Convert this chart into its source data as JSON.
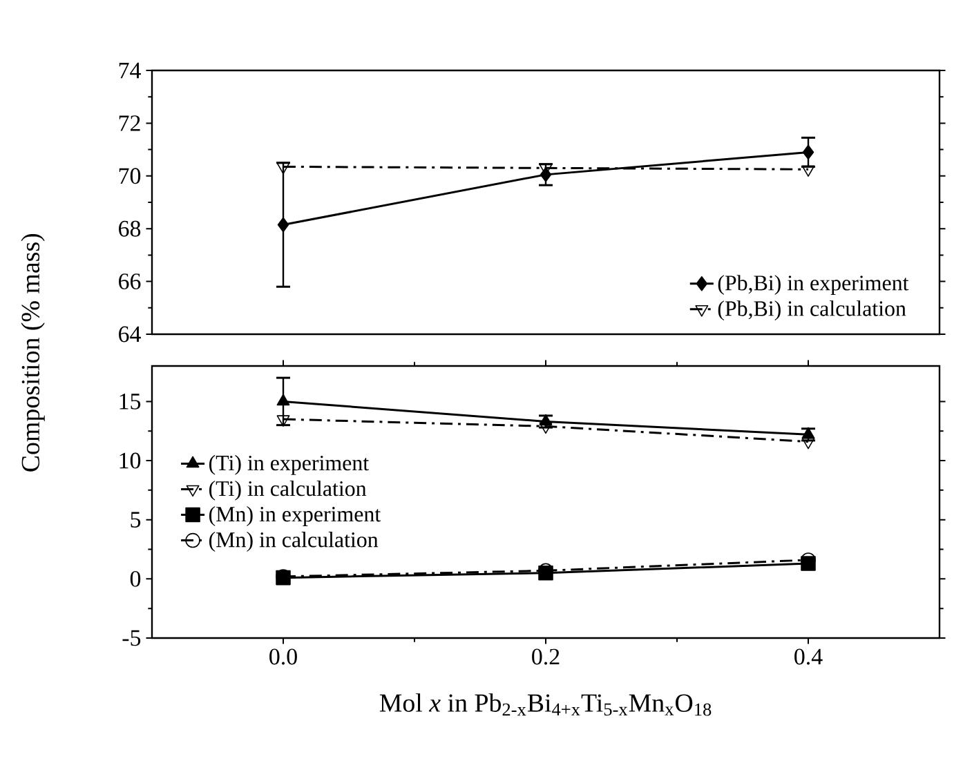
{
  "chart_data": [
    {
      "type": "line",
      "ylabel": "Composition (% mass)",
      "xlim": [
        -0.1,
        0.5
      ],
      "ylim": [
        64,
        74
      ],
      "yticks": [
        64,
        66,
        68,
        70,
        72,
        74
      ],
      "tick_labels": "y",
      "legend": "bottom right",
      "x": [
        0,
        0.2,
        0.4
      ],
      "series": [
        {
          "name": "(Pb,Bi) in experiment",
          "color": "#000000",
          "marker": "diamond",
          "line_style": "solid",
          "values": [
            68.15,
            70.05,
            70.9
          ],
          "errors": [
            2.35,
            0.4,
            0.55
          ]
        },
        {
          "name": "(Pb,Bi) in calculation",
          "color": "#000000",
          "marker": "triangle",
          "line_style": "dashed",
          "values": [
            70.35,
            70.3,
            70.25
          ]
        }
      ]
    },
    {
      "type": "line",
      "xlabel": "Mol *x* in Pb$_{2-x}$Bi$_{4+x}$Ti$_{5-x}$Mn$_{x}$O$_{18}$",
      "xlim": [
        -0.1,
        0.5
      ],
      "xticks": [
        {
          "value": 0,
          "label": "0.0"
        },
        {
          "value": 0.2,
          "label": "0.2"
        },
        {
          "value": 0.4,
          "label": "0.4"
        }
      ],
      "ylim": [
        -5,
        18
      ],
      "yticks": [
        -5,
        0,
        5,
        10,
        15
      ],
      "legend": "left",
      "x": [
        0,
        0.2,
        0.4
      ],
      "series": [
        {
          "name": "(Ti) in experiment",
          "color": "#000000",
          "marker": "triangle",
          "line_style": "solid",
          "values": [
            15.0,
            13.3,
            12.2
          ],
          "errors": [
            2.0,
            0.5,
            0.5
          ]
        },
        {
          "name": "(Ti) in calculation",
          "color": "#000000",
          "marker": "triangle",
          "line_style": "dashed",
          "values": [
            13.5,
            12.9,
            11.6
          ]
        },
        {
          "name": "(Mn) in experiment",
          "color": "#000000",
          "marker": "square",
          "line_style": "solid",
          "values": [
            0.1,
            0.5,
            1.3
          ]
        },
        {
          "name": "(Mn) in calculation",
          "color": "#000000",
          "marker": "circle",
          "line_style": "dashed",
          "values": [
            0.2,
            0.7,
            1.6
          ]
        }
      ]
    }
  ]
}
